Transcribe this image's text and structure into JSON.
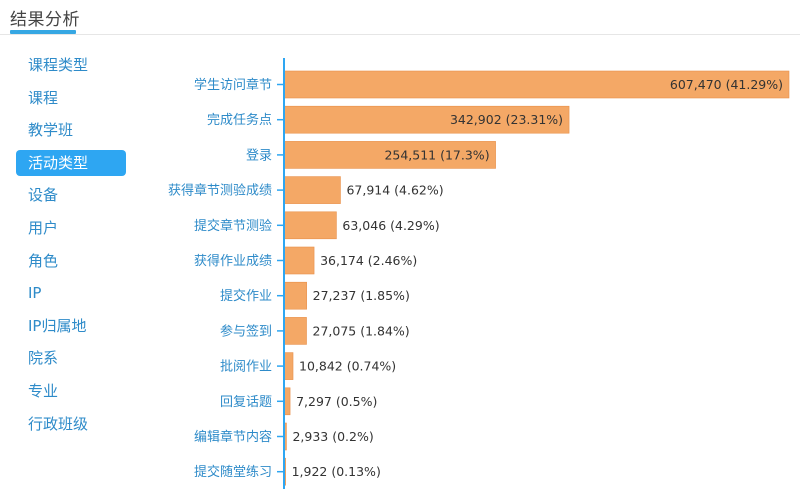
{
  "page": {
    "title": "结果分析"
  },
  "sidebar": {
    "items": [
      {
        "label": "课程类型",
        "active": false,
        "key": "course-type"
      },
      {
        "label": "课程",
        "active": false,
        "key": "course"
      },
      {
        "label": "教学班",
        "active": false,
        "key": "class"
      },
      {
        "label": "活动类型",
        "active": true,
        "key": "activity-type"
      },
      {
        "label": "设备",
        "active": false,
        "key": "device"
      },
      {
        "label": "用户",
        "active": false,
        "key": "user"
      },
      {
        "label": "角色",
        "active": false,
        "key": "role"
      },
      {
        "label": "IP",
        "active": false,
        "key": "ip"
      },
      {
        "label": "IP归属地",
        "active": false,
        "key": "ip-location"
      },
      {
        "label": "院系",
        "active": false,
        "key": "department"
      },
      {
        "label": "专业",
        "active": false,
        "key": "major"
      },
      {
        "label": "行政班级",
        "active": false,
        "key": "admin-class"
      }
    ]
  },
  "colors": {
    "bar": "#f4a866",
    "bar_border": "#e8904a",
    "axis": "#2ea6f2",
    "accent": "#36a7e3"
  },
  "chart_data": {
    "type": "bar",
    "orientation": "horizontal",
    "categories": [
      "学生访问章节",
      "完成任务点",
      "登录",
      "获得章节测验成绩",
      "提交章节测验",
      "获得作业成绩",
      "提交作业",
      "参与签到",
      "批阅作业",
      "回复话题",
      "编辑章节内容",
      "提交随堂练习"
    ],
    "values": [
      607470,
      342902,
      254511,
      67914,
      63046,
      36174,
      27237,
      27075,
      10842,
      7297,
      2933,
      1922
    ],
    "data_labels": [
      "607,470 (41.29%)",
      "342,902 (23.31%)",
      "254,511 (17.3%)",
      "67,914 (4.62%)",
      "63,046 (4.29%)",
      "36,174 (2.46%)",
      "27,237 (1.85%)",
      "27,075 (1.84%)",
      "10,842 (0.74%)",
      "7,297 (0.5%)",
      "2,933 (0.2%)",
      "1,922 (0.13%)"
    ],
    "title": "",
    "xlabel": "",
    "ylabel": "",
    "xlim": [
      0,
      607470
    ]
  }
}
